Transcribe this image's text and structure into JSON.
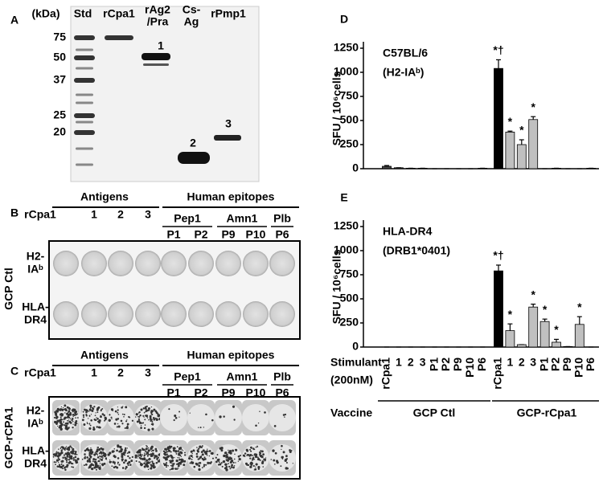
{
  "panels": {
    "A": {
      "label": "A",
      "unit": "(kDa)",
      "lanes": [
        "Std",
        "rCpa1",
        [
          "rAg2",
          "/Pra"
        ],
        [
          "Cs-",
          "Ag"
        ],
        "rPmp1"
      ],
      "ladder": [
        75,
        50,
        37,
        25,
        20
      ],
      "bands": [
        "1",
        "2",
        "3"
      ]
    },
    "B": {
      "label": "B",
      "antigens": "Antigens",
      "epitopes": "Human epitopes",
      "columns": [
        "rCpa1",
        "1",
        "2",
        "3"
      ],
      "epitope_groups": [
        {
          "name": "Pep1",
          "peptides": [
            "P1",
            "P2"
          ]
        },
        {
          "name": "Amn1",
          "peptides": [
            "P9",
            "P10"
          ]
        },
        {
          "name": "Plb",
          "peptides": [
            "P6"
          ]
        }
      ],
      "rows": [
        [
          "H2-",
          "IAᵇ"
        ],
        [
          "HLA-",
          "DR4"
        ]
      ],
      "vaccine": "GCP Ctl"
    },
    "C": {
      "label": "C",
      "antigens": "Antigens",
      "epitopes": "Human epitopes",
      "columns": [
        "rCpa1",
        "1",
        "2",
        "3"
      ],
      "epitope_groups": [
        {
          "name": "Pep1",
          "peptides": [
            "P1",
            "P2"
          ]
        },
        {
          "name": "Amn1",
          "peptides": [
            "P9",
            "P10"
          ]
        },
        {
          "name": "Plb",
          "peptides": [
            "P6"
          ]
        }
      ],
      "rows": [
        [
          "H2-",
          "IAᵇ"
        ],
        [
          "HLA-",
          "DR4"
        ]
      ],
      "vaccine": "GCP-rCPA1"
    }
  },
  "chart_data": [
    {
      "type": "bar",
      "panel": "D",
      "title": [
        "C57BL/6",
        "(H2-IAᵇ)"
      ],
      "y_label": "SFU / 10⁶cells",
      "categories": [
        null,
        null,
        null,
        null,
        null,
        null,
        null,
        null,
        null,
        null,
        null,
        null,
        null,
        null,
        null,
        null,
        null,
        null
      ],
      "values": [
        25,
        10,
        5,
        5,
        0,
        0,
        0,
        0,
        5,
        1040,
        380,
        250,
        510,
        0,
        5,
        0,
        0,
        5
      ],
      "errors": [
        8,
        0,
        0,
        0,
        0,
        0,
        0,
        0,
        0,
        90,
        10,
        50,
        30,
        0,
        0,
        0,
        0,
        0
      ],
      "colors": [
        "#444",
        "#444",
        "#444",
        "#444",
        "#444",
        "#444",
        "#444",
        "#444",
        "#444",
        "#000",
        "#c0c0c0",
        "#c0c0c0",
        "#c0c0c0",
        "#c0c0c0",
        "#c0c0c0",
        "#c0c0c0",
        "#c0c0c0",
        "#c0c0c0"
      ],
      "annotations": [
        null,
        null,
        null,
        null,
        null,
        null,
        null,
        null,
        null,
        "*†",
        "*",
        "*",
        "*",
        null,
        null,
        null,
        null,
        null
      ],
      "ylim": [
        0,
        1250
      ],
      "yticks": [
        0,
        250,
        500,
        750,
        1000,
        1250
      ]
    },
    {
      "type": "bar",
      "panel": "E",
      "title": [
        "HLA-DR4",
        "(DRB1*0401)"
      ],
      "y_label": "SFU / 10⁶cells",
      "categories": [
        "rCpa1",
        "1",
        "2",
        "3",
        "P1",
        "P2",
        "P9",
        "P10",
        "P6",
        "rCpa1",
        "1",
        "2",
        "3",
        "P1",
        "P2",
        "P9",
        "P10",
        "P6"
      ],
      "values": [
        0,
        0,
        0,
        0,
        0,
        0,
        0,
        0,
        0,
        790,
        170,
        25,
        415,
        265,
        50,
        5,
        235,
        0
      ],
      "errors": [
        0,
        0,
        0,
        0,
        0,
        0,
        0,
        0,
        0,
        60,
        70,
        0,
        30,
        25,
        30,
        0,
        80,
        0
      ],
      "colors": [
        "#444",
        "#444",
        "#444",
        "#444",
        "#444",
        "#444",
        "#444",
        "#444",
        "#444",
        "#000",
        "#c0c0c0",
        "#c0c0c0",
        "#c0c0c0",
        "#c0c0c0",
        "#c0c0c0",
        "#c0c0c0",
        "#c0c0c0",
        "#c0c0c0"
      ],
      "annotations": [
        null,
        null,
        null,
        null,
        null,
        null,
        null,
        null,
        null,
        "*†",
        "*",
        null,
        "*",
        "*",
        "*",
        null,
        "*",
        null
      ],
      "ylim": [
        0,
        1250
      ],
      "yticks": [
        0,
        250,
        500,
        750,
        1000,
        1250
      ],
      "x_label": [
        "Stimulant",
        "(200nM)"
      ],
      "group_label": "Vaccine",
      "groups": [
        "GCP  Ctl",
        "GCP-rCpa1"
      ]
    }
  ]
}
